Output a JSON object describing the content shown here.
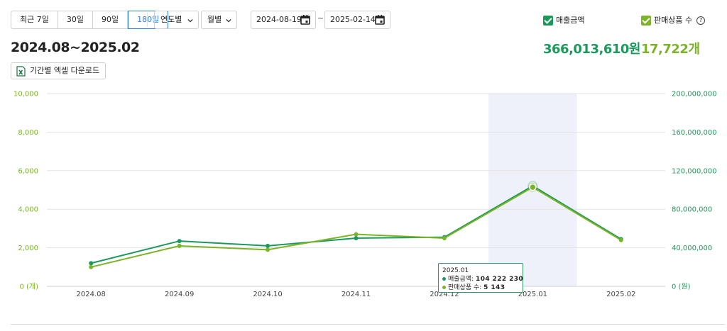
{
  "controls": {
    "range_options": [
      "최근 7일",
      "30일",
      "90일",
      "180일"
    ],
    "range_selected": "180일",
    "year_select": "연도별",
    "month_select": "월별",
    "date_from": "2024-08-19",
    "date_sep": "~",
    "date_to": "2025-02-14"
  },
  "legend": {
    "sales_label": "매출금액",
    "items_label": "판매상품 수",
    "help": "?"
  },
  "summary": {
    "period": "2024.08~2025.02",
    "total_sales": "366,013,610원",
    "total_items": "17,722개"
  },
  "download_label": "기간별 엑셀 다운로드",
  "colors": {
    "sales": "#1a9a5a",
    "items": "#7cb327",
    "highlight": "#eef1f9",
    "grid": "#e3e3e3"
  },
  "tooltip": {
    "title": "2025.01",
    "sales_label": "매출금액:",
    "sales_value": "104 222 230",
    "items_label": "판매상품 수:",
    "items_value": "5 143"
  },
  "chart_data": {
    "type": "line",
    "categories": [
      "2024.08",
      "2024.09",
      "2024.10",
      "2024.11",
      "2024.12",
      "2025.01",
      "2025.02"
    ],
    "series": [
      {
        "name": "매출금액",
        "axis": "right",
        "values": [
          24000000,
          47000000,
          42000000,
          50000000,
          51000000,
          104222230,
          49000000
        ]
      },
      {
        "name": "판매상품 수",
        "axis": "left",
        "values": [
          1000,
          2100,
          1900,
          2700,
          2500,
          5143,
          2400
        ]
      }
    ],
    "left_axis": {
      "ylim": [
        0,
        10000
      ],
      "ticks": [
        "0 (개)",
        "2,000",
        "4,000",
        "6,000",
        "8,000",
        "10,000"
      ]
    },
    "right_axis": {
      "ylim": [
        0,
        200000000
      ],
      "ticks": [
        "0 (원)",
        "40,000,000",
        "80,000,000",
        "120,000,000",
        "160,000,000",
        "200,000,000"
      ]
    },
    "highlighted_category": "2025.01",
    "grid": true
  }
}
